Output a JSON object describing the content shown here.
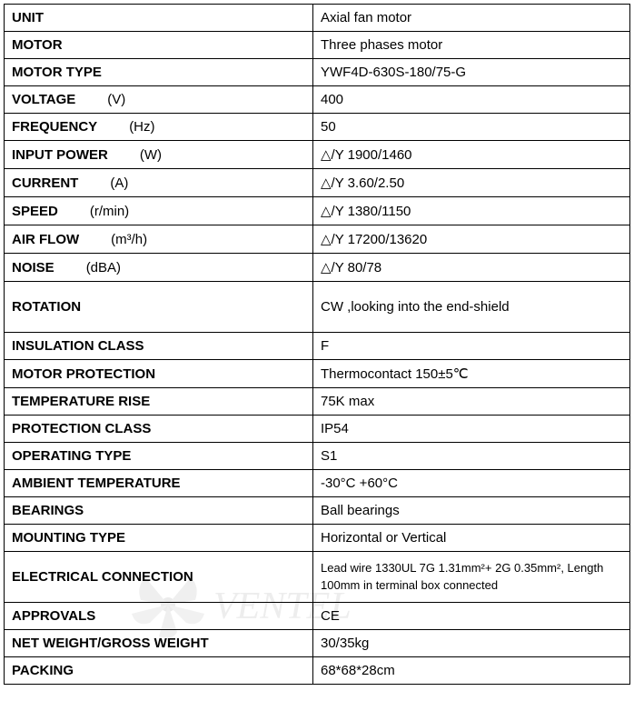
{
  "table": {
    "background_color": "#ffffff",
    "border_color": "#000000",
    "font_family": "Arial",
    "label_font_weight": "bold",
    "value_font_weight": "normal",
    "font_size": 15,
    "small_font_size": 13,
    "label_column_width": 340,
    "rows": [
      {
        "label": "UNIT",
        "unit": "",
        "value": "Axial fan motor"
      },
      {
        "label": "MOTOR",
        "unit": "",
        "value": "Three phases motor"
      },
      {
        "label": "MOTOR  TYPE",
        "unit": "",
        "value": "YWF4D-630S-180/75-G"
      },
      {
        "label": "VOLTAGE",
        "unit": "(V)",
        "value": " 400"
      },
      {
        "label": "FREQUENCY",
        "unit": "(Hz)",
        "value": " 50"
      },
      {
        "label": "INPUT  POWER",
        "unit": "(W)",
        "value": "△/Y  1900/1460"
      },
      {
        "label": "CURRENT",
        "unit": "(A)",
        "value": "△/Y  3.60/2.50"
      },
      {
        "label": "SPEED",
        "unit": "(r/min)",
        "value": "△/Y  1380/1150"
      },
      {
        "label": "AIR FLOW",
        "unit": "(m³/h)",
        "value": "△/Y  17200/13620"
      },
      {
        "label": "NOISE",
        "unit": "(dBA)",
        "value": "△/Y   80/78"
      },
      {
        "label": "ROTATION",
        "unit": "",
        "value": "CW ,looking into the end-shield",
        "taller": true
      },
      {
        "label": "INSULATION  CLASS",
        "unit": "",
        "value": "F"
      },
      {
        "label": "MOTOR PROTECTION",
        "unit": "",
        "value": "Thermocontact   150±5℃"
      },
      {
        "label": "TEMPERATURE RISE",
        "unit": "",
        "value": "75K max"
      },
      {
        "label": "PROTECTION  CLASS",
        "unit": "",
        "value": "IP54"
      },
      {
        "label": "OPERATING TYPE",
        "unit": "",
        "value": "S1"
      },
      {
        "label": "AMBIENT TEMPERATURE",
        "unit": "",
        "value": "-30°C  +60°C"
      },
      {
        "label": "BEARINGS",
        "unit": "",
        "value": "Ball bearings"
      },
      {
        "label": "MOUNTING TYPE",
        "unit": "",
        "value": "Horizontal or Vertical"
      },
      {
        "label": "ELECTRICAL  CONNECTION",
        "unit": "",
        "value": "Lead wire 1330UL 7G 1.31mm²+ 2G 0.35mm², Length 100mm in terminal box connected",
        "small": true,
        "taller": true
      },
      {
        "label": "APPROVALS",
        "unit": "",
        "value": "CE"
      },
      {
        "label": "NET WEIGHT/GROSS WEIGHT",
        "unit": "",
        "value": " 30/35kg"
      },
      {
        "label": "PACKING",
        "unit": "",
        "value": "68*68*28cm"
      }
    ]
  },
  "watermark": {
    "text": "VENTEL",
    "color": "#808080",
    "opacity": 0.12
  }
}
